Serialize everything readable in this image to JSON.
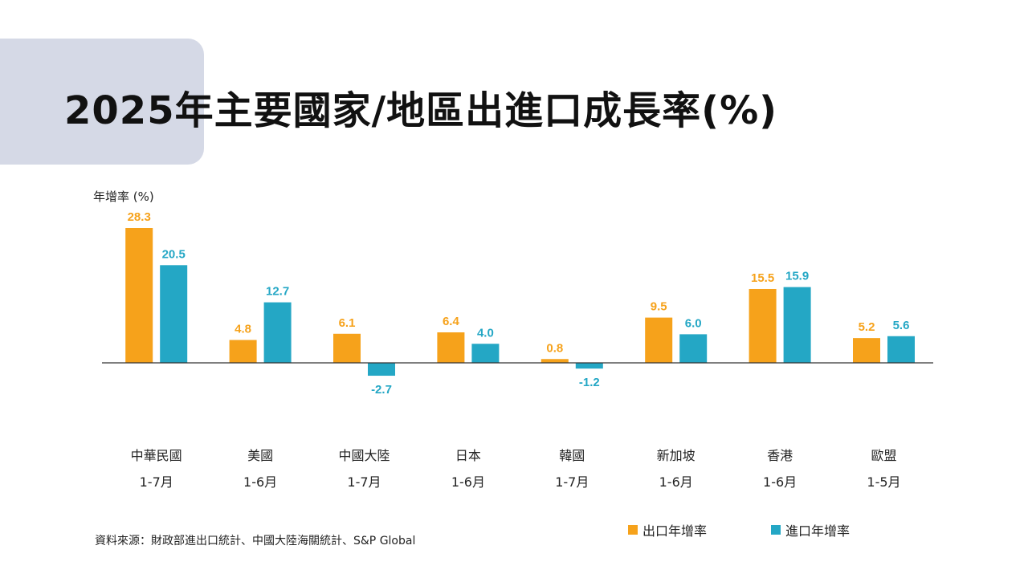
{
  "slide": {
    "title": "2025年主要國家/地區出進口成長率(%)",
    "source": "資料來源：財政部進出口統計、中國大陸海關統計、S&P Global"
  },
  "colors": {
    "export": "#f6a21b",
    "import": "#24a7c5",
    "title_bg": "#d5d9e6"
  },
  "chart_data": {
    "type": "bar",
    "ylabel": "年增率 (%)",
    "categories": [
      "中華民國",
      "美國",
      "中國大陸",
      "日本",
      "韓國",
      "新加坡",
      "香港",
      "歐盟"
    ],
    "periods": [
      "1-7月",
      "1-6月",
      "1-7月",
      "1-6月",
      "1-7月",
      "1-6月",
      "1-6月",
      "1-5月"
    ],
    "series": [
      {
        "name": "出口年增率",
        "values": [
          28.3,
          4.8,
          6.1,
          6.4,
          0.8,
          9.5,
          15.5,
          5.2
        ]
      },
      {
        "name": "進口年增率",
        "values": [
          20.5,
          12.7,
          -2.7,
          4.0,
          -1.2,
          6.0,
          15.9,
          5.6
        ]
      }
    ],
    "legend_position": "bottom-right",
    "grid": false
  }
}
